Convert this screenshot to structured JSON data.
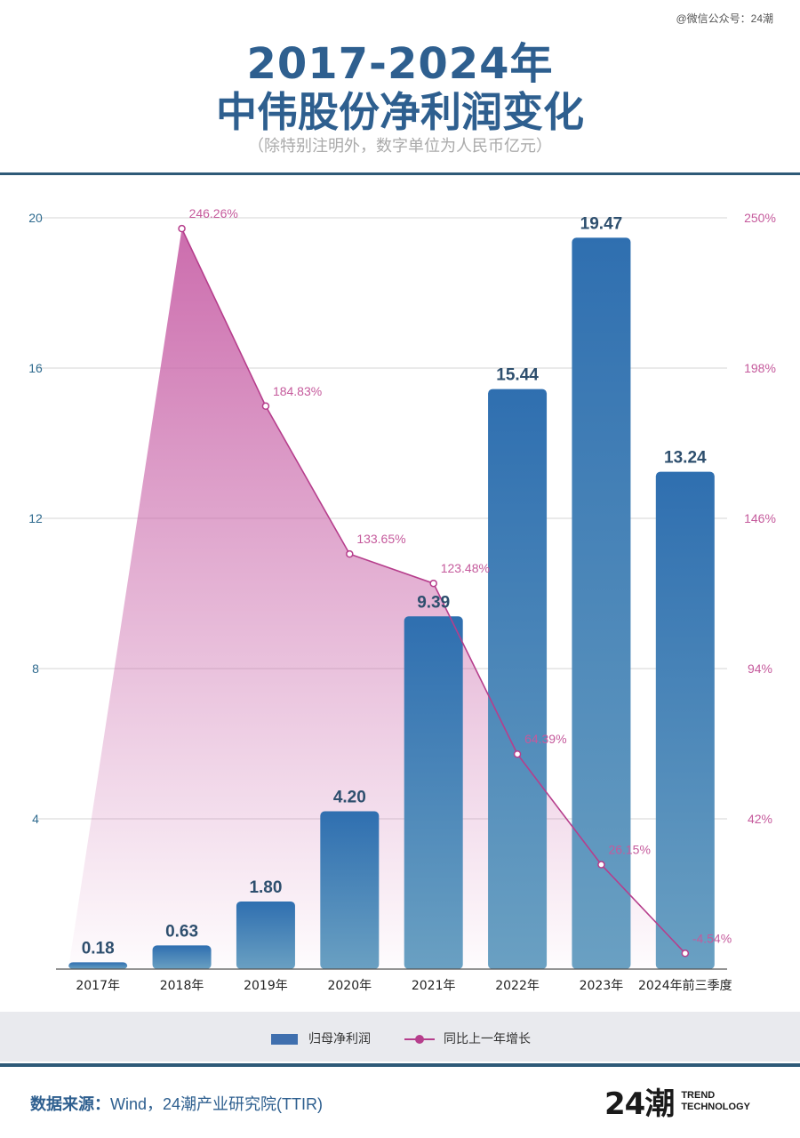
{
  "watermark": "@微信公众号：24潮",
  "title_line1": "2017-2024年",
  "title_line2": "中伟股份净利润变化",
  "subtitle": "（除特别注明外，数字单位为人民币亿元）",
  "chart_data": {
    "type": "bar",
    "categories": [
      "2017年",
      "2018年",
      "2019年",
      "2020年",
      "2021年",
      "2022年",
      "2023年",
      "2024年前三季度"
    ],
    "series": [
      {
        "name": "归母净利润",
        "type": "bar",
        "axis": "left",
        "values": [
          0.18,
          0.63,
          1.8,
          4.2,
          9.39,
          15.44,
          19.47,
          13.24
        ],
        "labels": [
          "0.18",
          "0.63",
          "1.80",
          "4.20",
          "9.39",
          "15.44",
          "19.47",
          "13.24"
        ]
      },
      {
        "name": "同比上一年增长",
        "type": "line",
        "axis": "right",
        "values": [
          null,
          246.26,
          184.83,
          133.65,
          123.48,
          64.39,
          26.15,
          -4.54
        ],
        "labels": [
          "",
          "246.26%",
          "184.83%",
          "133.65%",
          "123.48%",
          "64.39%",
          "26.15%",
          "-4.54%"
        ]
      }
    ],
    "left_axis": {
      "min": 0,
      "max": 20,
      "ticks": [
        "4",
        "8",
        "12",
        "16",
        "20"
      ]
    },
    "right_axis": {
      "min": -10,
      "max": 250,
      "ticks": [
        "42%",
        "94%",
        "146%",
        "198%",
        "250%"
      ]
    },
    "grid": true,
    "legend_position": "bottom",
    "colors": {
      "bar_top": "#2f6fb0",
      "bar_bottom": "#6aa0c2",
      "line": "#b63e8c",
      "area": "#c965a9",
      "left_tick": "#2e6a8e",
      "right_tick": "#c55a9c"
    }
  },
  "legend": {
    "bar_label": "归母净利润",
    "line_label": "同比上一年增长"
  },
  "source": {
    "label": "数据来源：",
    "text": "Wind，24潮产业研究院(TTIR)"
  },
  "logo": {
    "mark": "24潮",
    "line1": "TREND",
    "line2": "TECHNOLOGY"
  }
}
